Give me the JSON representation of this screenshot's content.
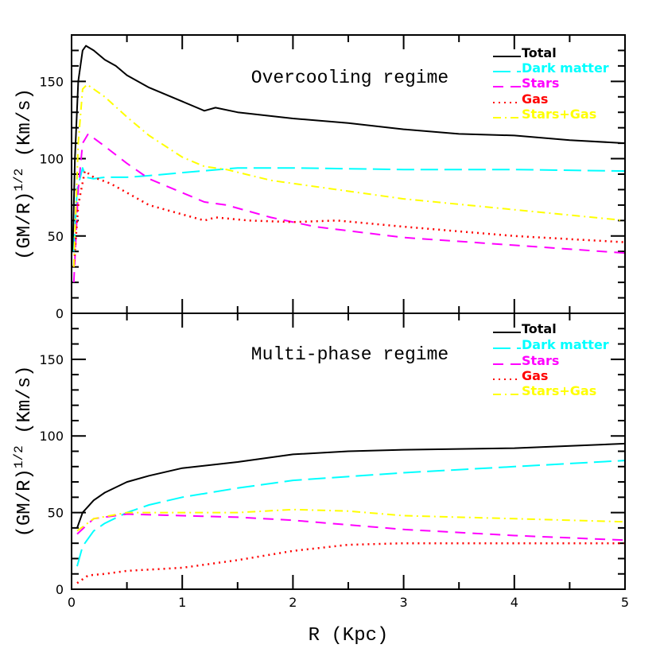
{
  "chart_data": [
    {
      "type": "line",
      "title": "Overcooling regime",
      "xlabel": "",
      "ylabel": {
        "base": "(GM/R)",
        "sup": "1/2",
        "unit": " (Km/s)"
      },
      "xlim": [
        0,
        5
      ],
      "ylim": [
        0,
        180
      ],
      "xticks": [
        0,
        1,
        2,
        3,
        4,
        5
      ],
      "yticks": [
        0,
        50,
        100,
        150
      ],
      "legend_position": "top-right",
      "series": [
        {
          "name": "Total",
          "color": "#000000",
          "style": "solid",
          "x": [
            0.01,
            0.03,
            0.06,
            0.1,
            0.13,
            0.2,
            0.3,
            0.4,
            0.5,
            0.7,
            1.0,
            1.2,
            1.3,
            1.5,
            2.0,
            2.5,
            3.0,
            3.5,
            4.0,
            4.5,
            5.0
          ],
          "y": [
            40,
            100,
            150,
            170,
            173,
            170,
            164,
            160,
            154,
            146,
            137,
            131,
            133,
            130,
            126,
            123,
            119,
            116,
            115,
            112,
            110
          ]
        },
        {
          "name": "Dark matter",
          "color": "#00ffff",
          "style": "longdash",
          "x": [
            0.02,
            0.05,
            0.1,
            0.13,
            0.2,
            0.3,
            0.5,
            0.7,
            1.0,
            1.5,
            2.0,
            3.0,
            4.0,
            5.0
          ],
          "y": [
            40,
            80,
            94,
            88,
            87,
            88,
            88,
            89,
            91,
            94,
            94,
            93,
            93,
            92
          ]
        },
        {
          "name": "Stars",
          "color": "#ff00ff",
          "style": "dash",
          "x": [
            0.02,
            0.06,
            0.1,
            0.15,
            0.3,
            0.5,
            0.7,
            1.0,
            1.2,
            1.4,
            1.8,
            2.2,
            3.0,
            4.0,
            5.0
          ],
          "y": [
            20,
            80,
            110,
            116,
            108,
            97,
            87,
            78,
            72,
            70,
            62,
            56,
            49,
            44,
            39
          ]
        },
        {
          "name": "Gas",
          "color": "#ff0000",
          "style": "dot",
          "x": [
            0.02,
            0.06,
            0.12,
            0.2,
            0.35,
            0.5,
            0.7,
            1.0,
            1.2,
            1.3,
            1.6,
            2.0,
            2.4,
            3.0,
            4.0,
            5.0
          ],
          "y": [
            30,
            70,
            92,
            88,
            84,
            78,
            70,
            64,
            60,
            62,
            60,
            59,
            60,
            56,
            50,
            46
          ]
        },
        {
          "name": "Stars+Gas",
          "color": "#ffff00",
          "style": "dashdot",
          "x": [
            0.02,
            0.06,
            0.1,
            0.14,
            0.3,
            0.5,
            0.7,
            1.0,
            1.2,
            1.4,
            1.8,
            2.2,
            3.0,
            4.0,
            5.0
          ],
          "y": [
            30,
            110,
            145,
            148,
            140,
            127,
            115,
            101,
            95,
            93,
            86,
            82,
            74,
            67,
            60
          ]
        }
      ]
    },
    {
      "type": "line",
      "title": "Multi-phase regime",
      "xlabel": "R (Kpc)",
      "ylabel": {
        "base": "(GM/R)",
        "sup": "1/2",
        "unit": " (Km/s)"
      },
      "xlim": [
        0,
        5
      ],
      "ylim": [
        0,
        180
      ],
      "xticks": [
        0,
        1,
        2,
        3,
        4,
        5
      ],
      "yticks": [
        0,
        50,
        100,
        150
      ],
      "legend_position": "top-right",
      "series": [
        {
          "name": "Total",
          "color": "#000000",
          "style": "solid",
          "x": [
            0.05,
            0.1,
            0.2,
            0.3,
            0.5,
            0.7,
            1.0,
            1.5,
            2.0,
            2.5,
            3.0,
            4.0,
            5.0
          ],
          "y": [
            40,
            50,
            58,
            63,
            70,
            74,
            79,
            83,
            88,
            90,
            91,
            92,
            95
          ]
        },
        {
          "name": "Dark matter",
          "color": "#00ffff",
          "style": "longdash",
          "x": [
            0.05,
            0.1,
            0.2,
            0.3,
            0.5,
            0.7,
            1.0,
            1.5,
            2.0,
            3.0,
            4.0,
            5.0
          ],
          "y": [
            15,
            28,
            38,
            43,
            50,
            55,
            60,
            66,
            71,
            76,
            80,
            84
          ]
        },
        {
          "name": "Stars",
          "color": "#ff00ff",
          "style": "dash",
          "x": [
            0.05,
            0.2,
            0.5,
            1.0,
            1.5,
            2.0,
            3.0,
            4.0,
            5.0
          ],
          "y": [
            36,
            46,
            49,
            48,
            47,
            45,
            39,
            35,
            32
          ]
        },
        {
          "name": "Gas",
          "color": "#ff0000",
          "style": "dot",
          "x": [
            0.05,
            0.15,
            0.3,
            0.5,
            1.0,
            1.5,
            2.0,
            2.5,
            3.0,
            4.0,
            5.0
          ],
          "y": [
            4,
            9,
            10,
            12,
            14,
            19,
            25,
            29,
            30,
            30,
            30
          ]
        },
        {
          "name": "Stars+Gas",
          "color": "#ffff00",
          "style": "dashdot",
          "x": [
            0.05,
            0.2,
            0.5,
            1.0,
            1.5,
            2.0,
            2.5,
            3.0,
            4.0,
            5.0
          ],
          "y": [
            38,
            46,
            50,
            50,
            50,
            52,
            51,
            48,
            46,
            44
          ]
        }
      ]
    }
  ]
}
